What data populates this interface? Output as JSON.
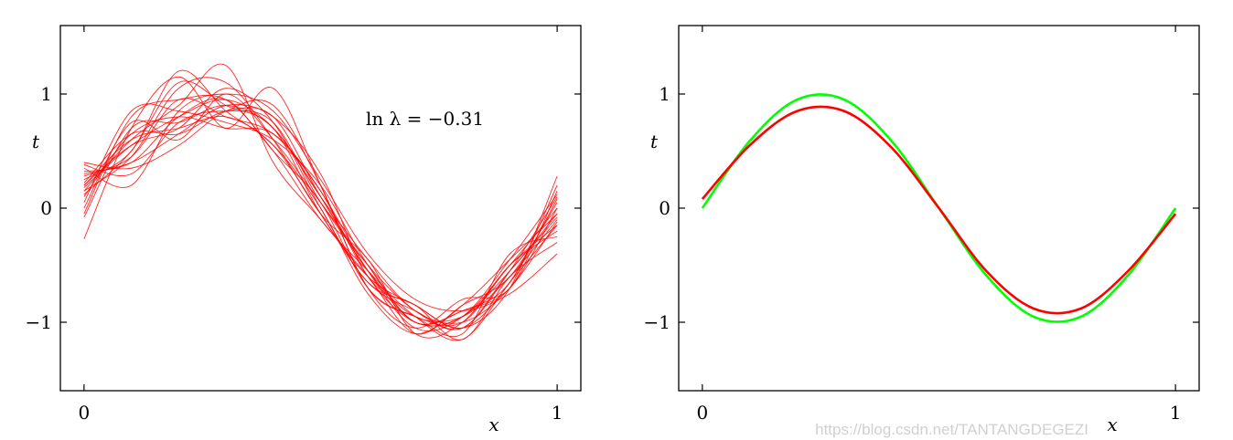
{
  "chart_data": [
    {
      "type": "line",
      "xlabel": "x",
      "ylabel": "t",
      "xlim": [
        -0.05,
        1.05
      ],
      "ylim": [
        -1.6,
        1.6
      ],
      "xticks": [
        0,
        1
      ],
      "xtick_labels": [
        "0",
        "1"
      ],
      "yticks": [
        -1,
        0,
        1
      ],
      "ytick_labels": [
        "−1",
        "0",
        "1"
      ],
      "grid": false,
      "annotation": "ln λ = −0.31",
      "x": [
        0,
        0.1,
        0.2,
        0.3,
        0.4,
        0.5,
        0.6,
        0.7,
        0.8,
        0.9,
        1.0
      ],
      "series_color": "#ff0000",
      "series": [
        {
          "values": [
            0.18,
            0.55,
            0.8,
            0.95,
            0.7,
            0.1,
            -0.55,
            -0.95,
            -0.95,
            -0.6,
            -0.1
          ]
        },
        {
          "values": [
            0.38,
            0.3,
            0.75,
            0.85,
            0.75,
            0.05,
            -0.5,
            -0.9,
            -1.05,
            -0.55,
            0.1
          ]
        },
        {
          "values": [
            -0.27,
            0.7,
            1.15,
            0.7,
            1.05,
            0.2,
            -0.7,
            -1.05,
            -0.8,
            -0.7,
            0.15
          ]
        },
        {
          "values": [
            0.15,
            0.45,
            1.05,
            1.1,
            0.6,
            -0.05,
            -0.45,
            -1.1,
            -1.0,
            -0.5,
            -0.2
          ]
        },
        {
          "values": [
            0.3,
            0.4,
            0.65,
            0.9,
            0.8,
            0.3,
            -0.6,
            -0.85,
            -1.05,
            -0.7,
            0.28
          ]
        },
        {
          "values": [
            0.2,
            0.6,
            0.7,
            0.8,
            0.55,
            0.0,
            -0.75,
            -1.1,
            -0.85,
            -0.45,
            -0.05
          ]
        },
        {
          "values": [
            -0.05,
            0.8,
            0.95,
            0.95,
            0.5,
            -0.1,
            -0.55,
            -0.95,
            -1.15,
            -0.65,
            -0.15
          ]
        },
        {
          "values": [
            0.35,
            0.2,
            0.85,
            1.0,
            0.85,
            0.25,
            -0.4,
            -0.8,
            -0.9,
            -0.75,
            -0.4
          ]
        },
        {
          "values": [
            0.1,
            0.65,
            0.8,
            0.7,
            0.65,
            0.15,
            -0.6,
            -1.0,
            -0.95,
            -0.5,
            0.0
          ]
        },
        {
          "values": [
            0.25,
            0.5,
            1.2,
            0.85,
            0.55,
            -0.05,
            -0.65,
            -0.9,
            -1.05,
            -0.55,
            -0.08
          ]
        },
        {
          "values": [
            0.0,
            0.75,
            0.6,
            1.0,
            0.6,
            0.05,
            -0.5,
            -1.0,
            -0.9,
            -0.65,
            0.2
          ]
        },
        {
          "values": [
            0.4,
            0.35,
            0.55,
            0.85,
            0.9,
            0.2,
            -0.7,
            -0.95,
            -1.1,
            -0.4,
            -0.25
          ]
        },
        {
          "values": [
            0.15,
            0.6,
            0.9,
            1.25,
            0.4,
            -0.1,
            -0.6,
            -1.1,
            -0.85,
            -0.6,
            0.05
          ]
        },
        {
          "values": [
            -0.08,
            0.7,
            0.75,
            0.9,
            0.7,
            0.1,
            -0.45,
            -0.9,
            -1.0,
            -0.7,
            -0.12
          ]
        },
        {
          "values": [
            0.28,
            0.45,
            0.95,
            0.8,
            0.65,
            0.15,
            -0.55,
            -1.05,
            -0.95,
            -0.45,
            0.12
          ]
        },
        {
          "values": [
            0.2,
            0.55,
            0.7,
            1.05,
            0.75,
            0.0,
            -0.65,
            -0.85,
            -1.15,
            -0.6,
            -0.3
          ]
        },
        {
          "values": [
            0.05,
            0.85,
            0.85,
            0.75,
            0.6,
            0.2,
            -0.5,
            -1.0,
            -0.9,
            -0.7,
            0.0
          ]
        },
        {
          "values": [
            0.32,
            0.4,
            0.8,
            0.95,
            0.5,
            0.05,
            -0.7,
            -0.95,
            -1.0,
            -0.5,
            -0.15
          ]
        },
        {
          "values": [
            0.12,
            0.5,
            1.1,
            0.9,
            0.7,
            -0.05,
            -0.6,
            -0.85,
            -1.05,
            -0.65,
            0.08
          ]
        },
        {
          "values": [
            0.22,
            0.65,
            0.65,
            0.85,
            0.8,
            0.1,
            -0.55,
            -1.0,
            -0.95,
            -0.55,
            -0.05
          ]
        }
      ]
    },
    {
      "type": "line",
      "xlabel": "x",
      "ylabel": "t",
      "xlim": [
        -0.05,
        1.05
      ],
      "ylim": [
        -1.6,
        1.6
      ],
      "xticks": [
        0,
        1
      ],
      "xtick_labels": [
        "0",
        "1"
      ],
      "yticks": [
        -1,
        0,
        1
      ],
      "ytick_labels": [
        "−1",
        "0",
        "1"
      ],
      "grid": false,
      "x": [
        0,
        0.1,
        0.2,
        0.3,
        0.4,
        0.5,
        0.6,
        0.7,
        0.8,
        0.9,
        1.0
      ],
      "series": [
        {
          "color": "#00ff00",
          "values": [
            0.0,
            0.588,
            0.951,
            0.951,
            0.588,
            0.0,
            -0.588,
            -0.951,
            -0.951,
            -0.588,
            0.0
          ]
        },
        {
          "color": "#ff0000",
          "values": [
            0.08,
            0.55,
            0.85,
            0.85,
            0.53,
            0.0,
            -0.55,
            -0.88,
            -0.88,
            -0.55,
            -0.05
          ]
        }
      ]
    }
  ],
  "watermark": "https://blog.csdn.net/TANTANGDEGEZI"
}
